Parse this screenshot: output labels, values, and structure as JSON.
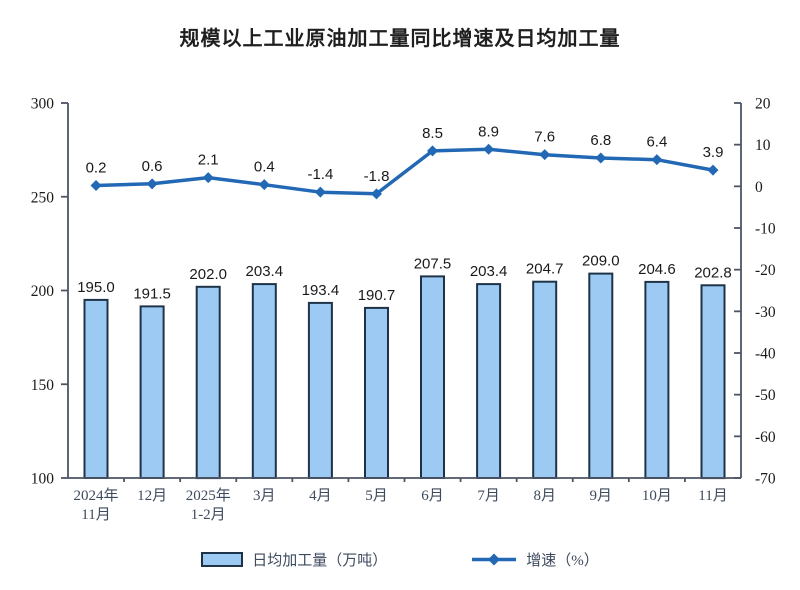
{
  "title": "规模以上工业原油加工量同比增速及日均加工量",
  "colors": {
    "bar_fill": "#9CCAF3",
    "bar_border": "#1E3348",
    "line": "#2268B5",
    "axis": "#4C5566",
    "tick_label": "#1a1a1a",
    "category_label": "#3e4a5e",
    "value_label": "#1a1a1a"
  },
  "legend": {
    "bar_label": "日均加工量（万吨）",
    "line_label": "增速（%）"
  },
  "chart_data": {
    "type": "bar+line",
    "title": "规模以上工业原油加工量同比增速及日均加工量",
    "categories": [
      [
        "2024年",
        "11月"
      ],
      [
        "12月"
      ],
      [
        "2025年",
        "1-2月"
      ],
      [
        "3月"
      ],
      [
        "4月"
      ],
      [
        "5月"
      ],
      [
        "6月"
      ],
      [
        "7月"
      ],
      [
        "8月"
      ],
      [
        "9月"
      ],
      [
        "10月"
      ],
      [
        "11月"
      ]
    ],
    "series": [
      {
        "name": "日均加工量（万吨）",
        "chart": "bar",
        "axis": "left",
        "values": [
          195.0,
          191.5,
          202.0,
          203.4,
          193.4,
          190.7,
          207.5,
          203.4,
          204.7,
          209.0,
          204.6,
          202.8
        ]
      },
      {
        "name": "增速（%）",
        "chart": "line",
        "axis": "right",
        "values": [
          0.2,
          0.6,
          2.1,
          0.4,
          -1.4,
          -1.8,
          8.5,
          8.9,
          7.6,
          6.8,
          6.4,
          3.9
        ]
      }
    ],
    "left_axis": {
      "min": 100,
      "max": 300,
      "ticks": [
        300,
        250,
        200,
        150,
        100
      ]
    },
    "right_axis": {
      "min": -70,
      "max": 20,
      "ticks": [
        20,
        10,
        0,
        -10,
        -20,
        -30,
        -40,
        -50,
        -60,
        -70
      ]
    },
    "grid": false,
    "legend_position": "bottom",
    "value_label_decimals": 1
  }
}
